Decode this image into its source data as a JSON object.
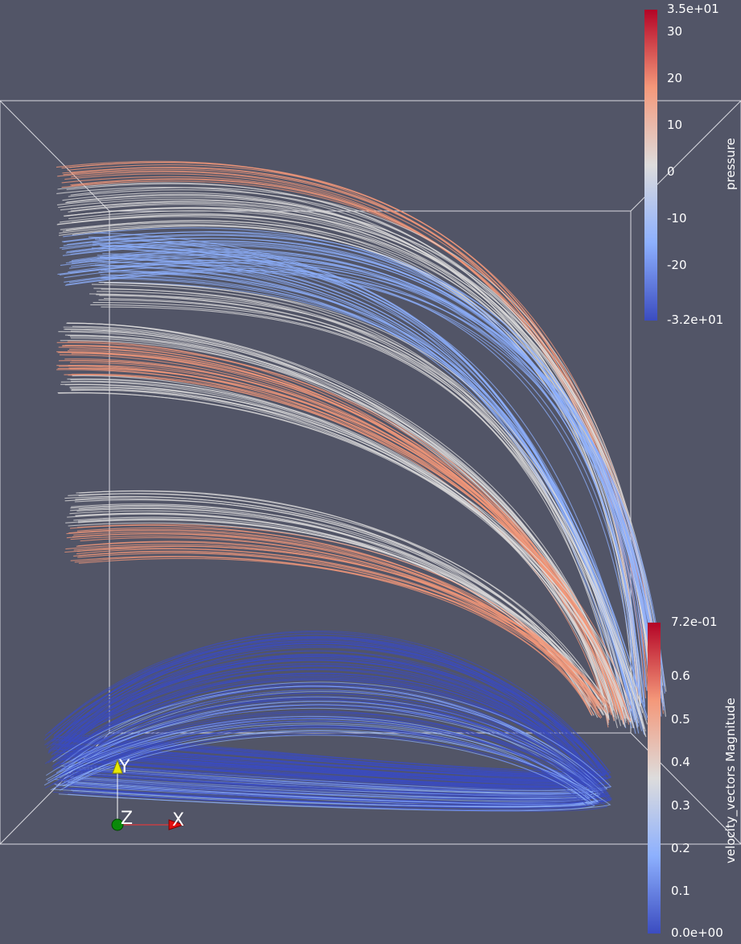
{
  "scene": {
    "background": "#525567",
    "streamline_colors": {
      "cold": "#3b4cc0",
      "cool": "#8db0fe",
      "neutral": "#dddcdc",
      "warm": "#f4987a",
      "hot": "#d75445"
    }
  },
  "colorbars": {
    "pressure": {
      "title": "pressure",
      "max_label": "3.5e+01",
      "min_label": "-3.2e+01",
      "ticks": [
        "30",
        "20",
        "10",
        "0",
        "-10",
        "-20"
      ],
      "range": [
        -32,
        35
      ],
      "tick_values": [
        30,
        20,
        10,
        0,
        -10,
        -20
      ]
    },
    "velocity": {
      "title": "velocity_vectors Magnitude",
      "max_label": "7.2e-01",
      "min_label": "0.0e+00",
      "ticks": [
        "0.6",
        "0.5",
        "0.4",
        "0.3",
        "0.2",
        "0.1"
      ],
      "range": [
        0,
        0.72
      ],
      "tick_values": [
        0.6,
        0.5,
        0.4,
        0.3,
        0.2,
        0.1
      ]
    }
  },
  "orientation_axes": {
    "x_label": "X",
    "y_label": "Y",
    "z_label": "Z",
    "x_color": "#ff0000",
    "y_color": "#ffff00",
    "z_color": "#008000"
  }
}
